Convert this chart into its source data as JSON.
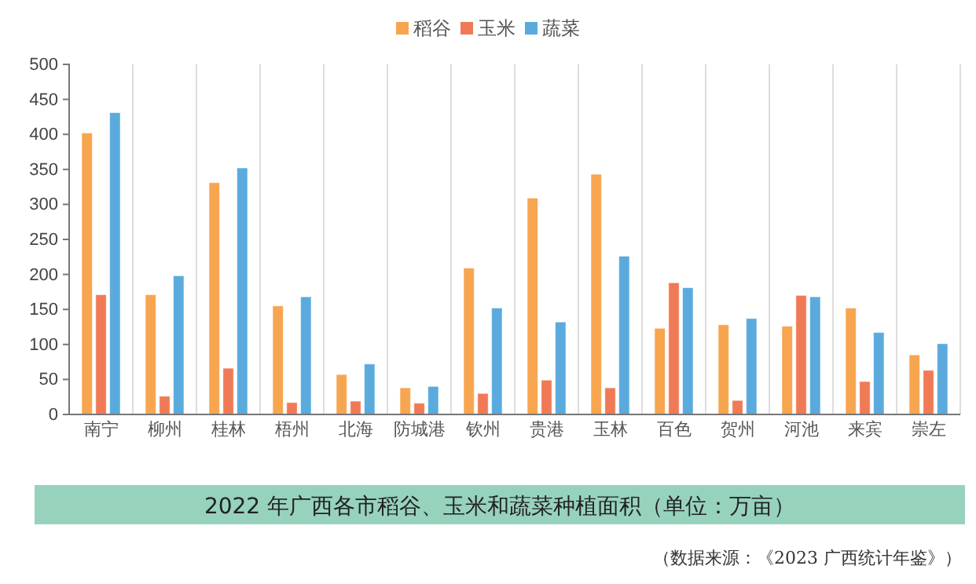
{
  "chart_data": {
    "type": "bar",
    "title": "2022 年广西各市稻谷、玉米和蔬菜种植面积（单位：万亩）",
    "annotations": [
      "（数据来源：《2023 广西统计年鉴》）"
    ],
    "categories": [
      "南宁",
      "柳州",
      "桂林",
      "梧州",
      "北海",
      "防城港",
      "钦州",
      "贵港",
      "玉林",
      "百色",
      "贺州",
      "河池",
      "来宾",
      "崇左"
    ],
    "series": [
      {
        "name": "稻谷",
        "color": "#f7a54f",
        "values": [
          402,
          171,
          331,
          155,
          57,
          38,
          209,
          309,
          343,
          123,
          128,
          126,
          152,
          85
        ]
      },
      {
        "name": "玉米",
        "color": "#f07a56",
        "values": [
          171,
          26,
          66,
          17,
          19,
          16,
          30,
          49,
          38,
          188,
          20,
          170,
          47,
          63
        ]
      },
      {
        "name": "蔬菜",
        "color": "#5aaade",
        "values": [
          431,
          198,
          352,
          168,
          72,
          40,
          152,
          132,
          226,
          181,
          137,
          168,
          117,
          101
        ]
      }
    ],
    "ylim": [
      0,
      500
    ],
    "yticks": [
      0,
      50,
      100,
      150,
      200,
      250,
      300,
      350,
      400,
      450,
      500
    ],
    "grid": "x",
    "legend": "top"
  }
}
